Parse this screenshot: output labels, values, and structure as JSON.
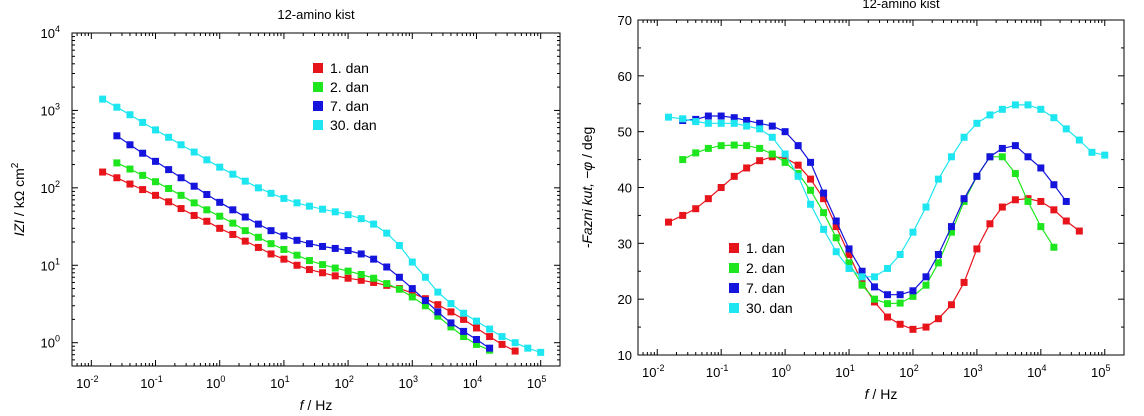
{
  "colors": {
    "1_dan": "#e8141c",
    "2_dan": "#1ee61e",
    "7_dan": "#1414dc",
    "30_dan": "#1ee6f0",
    "frame": "#000000"
  },
  "chart_data": [
    {
      "type": "scatter",
      "title": "12-amino kist",
      "xlabel_italic": "f",
      "xlabel_rest": " / Hz",
      "ylabel_italic": "IZI",
      "ylabel_rest": " / kΩ cm",
      "ylabel_sup": "2",
      "xscale": "log",
      "yscale": "log",
      "xlim": [
        0.005,
        200000
      ],
      "ylim": [
        0.5,
        10000
      ],
      "xticks": [
        {
          "base": "10",
          "exp": "-2",
          "v": 0.01
        },
        {
          "base": "10",
          "exp": "-1",
          "v": 0.1
        },
        {
          "base": "10",
          "exp": "0",
          "v": 1
        },
        {
          "base": "10",
          "exp": "1",
          "v": 10
        },
        {
          "base": "10",
          "exp": "2",
          "v": 100
        },
        {
          "base": "10",
          "exp": "3",
          "v": 1000
        },
        {
          "base": "10",
          "exp": "4",
          "v": 10000
        },
        {
          "base": "10",
          "exp": "5",
          "v": 100000
        }
      ],
      "yticks": [
        {
          "base": "10",
          "exp": "0",
          "v": 1
        },
        {
          "base": "10",
          "exp": "1",
          "v": 10
        },
        {
          "base": "10",
          "exp": "2",
          "v": 100
        },
        {
          "base": "10",
          "exp": "3",
          "v": 1000
        },
        {
          "base": "10",
          "exp": "4",
          "v": 10000
        }
      ],
      "legend_position": "top-center",
      "series": [
        {
          "name": "1. dan",
          "color_key": "1_dan",
          "x": [
            0.015,
            0.025,
            0.04,
            0.063,
            0.1,
            0.16,
            0.25,
            0.4,
            0.63,
            1,
            1.6,
            2.5,
            4,
            6.3,
            10,
            16,
            25,
            40,
            63,
            100,
            160,
            250,
            400,
            630,
            1000,
            1600,
            2500,
            4000,
            6300,
            10000,
            16000,
            25000,
            40000
          ],
          "y": [
            160,
            135,
            112,
            95,
            80,
            66,
            54,
            44,
            37,
            30,
            25,
            20.5,
            17,
            14,
            12,
            10,
            8.8,
            8,
            7.3,
            6.8,
            6.4,
            6,
            5.5,
            5,
            4.4,
            3.7,
            3.1,
            2.5,
            2,
            1.55,
            1.2,
            0.95,
            0.78
          ]
        },
        {
          "name": "2. dan",
          "color_key": "2_dan",
          "x": [
            0.025,
            0.04,
            0.063,
            0.1,
            0.16,
            0.25,
            0.4,
            0.63,
            1,
            1.6,
            2.5,
            4,
            6.3,
            10,
            16,
            25,
            40,
            63,
            100,
            160,
            250,
            400,
            630,
            1000,
            1600,
            2500,
            4000,
            6300,
            10000,
            16000
          ],
          "y": [
            210,
            175,
            145,
            120,
            98,
            80,
            64,
            52,
            43,
            35,
            28,
            23,
            19,
            16,
            13.5,
            11.5,
            10.2,
            9.2,
            8.4,
            7.6,
            6.8,
            5.8,
            4.9,
            3.9,
            3.0,
            2.2,
            1.6,
            1.2,
            0.95,
            0.8
          ]
        },
        {
          "name": "7. dan",
          "color_key": "7_dan",
          "x": [
            0.025,
            0.04,
            0.063,
            0.1,
            0.16,
            0.25,
            0.4,
            0.63,
            1,
            1.6,
            2.5,
            4,
            6.3,
            10,
            16,
            25,
            40,
            63,
            100,
            160,
            250,
            400,
            630,
            1000,
            1600,
            2500,
            4000,
            6300,
            10000,
            16000
          ],
          "y": [
            470,
            360,
            280,
            220,
            172,
            135,
            105,
            82,
            65,
            52,
            42,
            34,
            28,
            24,
            21,
            19,
            17.5,
            16.5,
            15.5,
            14,
            12,
            9.5,
            7,
            5,
            3.5,
            2.5,
            1.8,
            1.4,
            1.1,
            0.85
          ]
        },
        {
          "name": "30. dan",
          "color_key": "30_dan",
          "x": [
            0.015,
            0.025,
            0.04,
            0.063,
            0.1,
            0.16,
            0.25,
            0.4,
            0.63,
            1,
            1.6,
            2.5,
            4,
            6.3,
            10,
            16,
            25,
            40,
            63,
            100,
            160,
            250,
            400,
            630,
            1000,
            1600,
            2500,
            4000,
            6300,
            10000,
            16000,
            25000,
            40000,
            63000,
            100000
          ],
          "y": [
            1400,
            1100,
            880,
            700,
            560,
            450,
            360,
            290,
            230,
            185,
            150,
            122,
            100,
            85,
            73,
            64,
            58,
            53,
            49,
            45,
            40,
            34,
            26,
            18,
            11,
            7,
            4.5,
            3.2,
            2.4,
            1.9,
            1.5,
            1.2,
            1.0,
            0.85,
            0.75
          ]
        }
      ]
    },
    {
      "type": "scatter",
      "title": "12-amino kist",
      "xlabel_italic": "f",
      "xlabel_rest": " / Hz",
      "ylabel_italic": "-Fazni kut, −φ",
      "ylabel_rest": " / deg",
      "xscale": "log",
      "yscale": "linear",
      "xlim": [
        0.005,
        200000
      ],
      "ylim": [
        10,
        70
      ],
      "xticks": [
        {
          "base": "10",
          "exp": "-2",
          "v": 0.01
        },
        {
          "base": "10",
          "exp": "-1",
          "v": 0.1
        },
        {
          "base": "10",
          "exp": "0",
          "v": 1
        },
        {
          "base": "10",
          "exp": "1",
          "v": 10
        },
        {
          "base": "10",
          "exp": "2",
          "v": 100
        },
        {
          "base": "10",
          "exp": "3",
          "v": 1000
        },
        {
          "base": "10",
          "exp": "4",
          "v": 10000
        },
        {
          "base": "10",
          "exp": "5",
          "v": 100000
        }
      ],
      "yticks": [
        10,
        20,
        30,
        40,
        50,
        60,
        70
      ],
      "legend_position": "bottom-left",
      "series": [
        {
          "name": "1. dan",
          "color_key": "1_dan",
          "x": [
            0.015,
            0.025,
            0.04,
            0.063,
            0.1,
            0.16,
            0.25,
            0.4,
            0.63,
            1,
            1.6,
            2.5,
            4,
            6.3,
            10,
            16,
            25,
            40,
            63,
            100,
            160,
            250,
            400,
            630,
            1000,
            1600,
            2500,
            4000,
            6300,
            10000,
            16000,
            25000,
            40000
          ],
          "y": [
            33.8,
            35,
            36.2,
            38,
            40,
            42,
            43.5,
            44.8,
            45.5,
            45.3,
            44,
            41.5,
            38,
            33,
            28,
            23,
            19.5,
            16.8,
            15.5,
            14.6,
            15,
            16.5,
            19,
            23,
            29,
            33.5,
            36.5,
            37.8,
            38,
            37.5,
            36,
            34,
            32.2
          ]
        },
        {
          "name": "2. dan",
          "color_key": "2_dan",
          "x": [
            0.025,
            0.04,
            0.063,
            0.1,
            0.16,
            0.25,
            0.4,
            0.63,
            1,
            1.6,
            2.5,
            4,
            6.3,
            10,
            16,
            25,
            40,
            63,
            100,
            160,
            250,
            400,
            630,
            1000,
            1600,
            2500,
            4000,
            6300,
            10000,
            16000
          ],
          "y": [
            45,
            46.2,
            47,
            47.5,
            47.6,
            47.5,
            47,
            46,
            44.5,
            42.5,
            39.5,
            35.5,
            31,
            26.5,
            22.5,
            20,
            19.2,
            19.3,
            20.5,
            22.5,
            26.5,
            32,
            37.5,
            42,
            45.5,
            45.5,
            42.5,
            37.5,
            33,
            29.3
          ]
        },
        {
          "name": "7. dan",
          "color_key": "7_dan",
          "x": [
            0.025,
            0.04,
            0.063,
            0.1,
            0.16,
            0.25,
            0.4,
            0.63,
            1,
            1.6,
            2.5,
            4,
            6.3,
            10,
            16,
            25,
            40,
            63,
            100,
            160,
            250,
            400,
            630,
            1000,
            1600,
            2500,
            4000,
            6300,
            10000,
            16000,
            25000
          ],
          "y": [
            52,
            52.2,
            52.8,
            52.8,
            52.5,
            52,
            51.5,
            51,
            50,
            47.5,
            44.5,
            39,
            34,
            29,
            25,
            22.2,
            20.8,
            20.8,
            21.5,
            24,
            28,
            33,
            38,
            42,
            45.5,
            47,
            47.5,
            45.5,
            43.5,
            40.5,
            37.5
          ]
        },
        {
          "name": "30. dan",
          "color_key": "30_dan",
          "x": [
            0.015,
            0.025,
            0.04,
            0.063,
            0.1,
            0.16,
            0.25,
            0.4,
            0.63,
            1,
            1.6,
            2.5,
            4,
            6.3,
            10,
            16,
            25,
            40,
            63,
            100,
            160,
            250,
            400,
            630,
            1000,
            1600,
            2500,
            4000,
            6300,
            10000,
            16000,
            25000,
            40000,
            63000,
            100000
          ],
          "y": [
            52.6,
            52.3,
            51.8,
            51.5,
            51.5,
            51.5,
            51,
            50.5,
            49,
            46,
            42,
            37,
            32.5,
            28.5,
            25.5,
            24,
            24,
            25.5,
            28,
            32,
            36.5,
            41.5,
            45.5,
            49,
            51.5,
            53,
            54,
            54.8,
            54.8,
            54,
            52.5,
            50.5,
            48.5,
            46.3,
            45.8
          ]
        }
      ]
    }
  ]
}
